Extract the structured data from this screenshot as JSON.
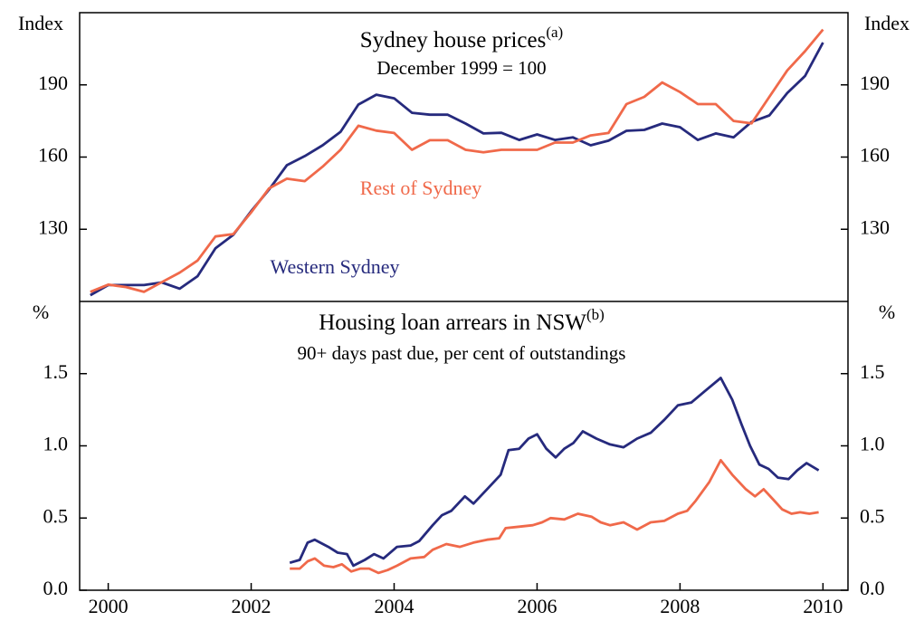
{
  "chart_data": [
    {
      "type": "line",
      "title": "Sydney house prices",
      "title_note": "(a)",
      "subtitle": "December 1999 = 100",
      "y_unit": "Index",
      "x": [
        1999.75,
        2000,
        2000.25,
        2000.5,
        2000.75,
        2001,
        2001.25,
        2001.5,
        2001.75,
        2002,
        2002.25,
        2002.5,
        2002.75,
        2003,
        2003.25,
        2003.5,
        2003.75,
        2004,
        2004.25,
        2004.5,
        2004.75,
        2005,
        2005.25,
        2005.5,
        2005.75,
        2006,
        2006.25,
        2006.5,
        2006.75,
        2007,
        2007.25,
        2007.5,
        2007.75,
        2008,
        2008.25,
        2008.5,
        2008.75,
        2009,
        2009.25,
        2009.5,
        2009.75,
        2010
      ],
      "series": [
        {
          "name": "Western Sydney",
          "color": "#262a7d",
          "values": [
            102.6,
            106.8,
            106.8,
            106.8,
            107.9,
            105.3,
            110.5,
            122.1,
            127.7,
            137.5,
            146.5,
            156.6,
            160.4,
            164.9,
            170.5,
            181.8,
            185.9,
            184.4,
            178.4,
            177.6,
            177.6,
            173.9,
            169.8,
            170.1,
            167.1,
            169.4,
            167.1,
            168.2,
            164.9,
            166.8,
            170.9,
            171.3,
            173.9,
            172.4,
            167.1,
            169.8,
            168.2,
            174.6,
            177.3,
            186.6,
            193.7,
            207.6
          ]
        },
        {
          "name": "Rest of Sydney",
          "color": "#f0694a",
          "values": [
            104,
            107,
            106,
            104,
            108,
            112,
            117,
            127,
            128,
            137,
            147,
            151,
            150,
            156,
            163,
            173,
            171,
            170,
            163,
            167,
            167,
            163,
            162,
            163,
            163,
            163,
            166,
            166,
            169,
            170,
            182,
            185,
            191,
            187,
            182,
            182,
            175,
            174,
            185,
            196,
            204,
            213
          ]
        }
      ],
      "xlim": [
        1999.6,
        2010.35
      ],
      "ylim": [
        100,
        220
      ],
      "yticks": [
        130,
        160,
        190
      ]
    },
    {
      "type": "line",
      "title": "Housing loan arrears in NSW",
      "title_note": "(b)",
      "subtitle": "90+ days past due, per cent of outstandings",
      "y_unit": "%",
      "series": [
        {
          "name": "Western Sydney",
          "color": "#262a7d",
          "x": [
            2002.54,
            2002.68,
            2002.79,
            2002.89,
            2003.08,
            2003.21,
            2003.34,
            2003.43,
            2003.59,
            2003.72,
            2003.85,
            2004.04,
            2004.23,
            2004.35,
            2004.54,
            2004.67,
            2004.8,
            2004.99,
            2005.11,
            2005.3,
            2005.49,
            2005.6,
            2005.75,
            2005.88,
            2006,
            2006.13,
            2006.26,
            2006.38,
            2006.51,
            2006.64,
            2006.83,
            2007.02,
            2007.21,
            2007.4,
            2007.59,
            2007.78,
            2007.97,
            2008.16,
            2008.35,
            2008.57,
            2008.73,
            2008.86,
            2008.98,
            2009.11,
            2009.24,
            2009.37,
            2009.52,
            2009.64,
            2009.77,
            2009.94
          ],
          "values": [
            0.19,
            0.21,
            0.33,
            0.35,
            0.3,
            0.26,
            0.25,
            0.17,
            0.21,
            0.25,
            0.22,
            0.3,
            0.31,
            0.34,
            0.45,
            0.52,
            0.55,
            0.65,
            0.6,
            0.7,
            0.8,
            0.97,
            0.98,
            1.05,
            1.08,
            0.98,
            0.92,
            0.98,
            1.02,
            1.1,
            1.05,
            1.01,
            0.99,
            1.05,
            1.09,
            1.18,
            1.28,
            1.3,
            1.38,
            1.47,
            1.32,
            1.15,
            1.0,
            0.87,
            0.84,
            0.78,
            0.77,
            0.83,
            0.88,
            0.83
          ]
        },
        {
          "name": "Rest of Sydney",
          "color": "#f0694a",
          "x": [
            2002.54,
            2002.68,
            2002.79,
            2002.89,
            2003.02,
            2003.15,
            2003.27,
            2003.4,
            2003.53,
            2003.65,
            2003.78,
            2003.91,
            2004.04,
            2004.23,
            2004.42,
            2004.54,
            2004.73,
            2004.92,
            2005.11,
            2005.3,
            2005.47,
            2005.56,
            2005.75,
            2005.94,
            2006.07,
            2006.19,
            2006.38,
            2006.57,
            2006.76,
            2006.89,
            2007.02,
            2007.21,
            2007.4,
            2007.59,
            2007.78,
            2007.97,
            2008.1,
            2008.22,
            2008.41,
            2008.57,
            2008.73,
            2008.92,
            2009.05,
            2009.17,
            2009.3,
            2009.43,
            2009.56,
            2009.68,
            2009.81,
            2009.94
          ],
          "values": [
            0.15,
            0.15,
            0.2,
            0.22,
            0.17,
            0.16,
            0.18,
            0.13,
            0.15,
            0.15,
            0.12,
            0.14,
            0.17,
            0.22,
            0.23,
            0.28,
            0.32,
            0.3,
            0.33,
            0.35,
            0.36,
            0.43,
            0.44,
            0.45,
            0.47,
            0.5,
            0.49,
            0.53,
            0.51,
            0.47,
            0.45,
            0.47,
            0.42,
            0.47,
            0.48,
            0.53,
            0.55,
            0.62,
            0.75,
            0.9,
            0.8,
            0.7,
            0.65,
            0.7,
            0.63,
            0.56,
            0.53,
            0.54,
            0.53,
            0.54
          ]
        }
      ],
      "xlim": [
        1999.6,
        2010.35
      ],
      "xticks": [
        2000,
        2002,
        2004,
        2006,
        2008,
        2010
      ],
      "ylim": [
        0,
        2
      ],
      "yticks": [
        {
          "value": 0,
          "label": "0.0"
        },
        0.5,
        {
          "value": 1,
          "label": "1.0"
        },
        1.5
      ]
    }
  ]
}
